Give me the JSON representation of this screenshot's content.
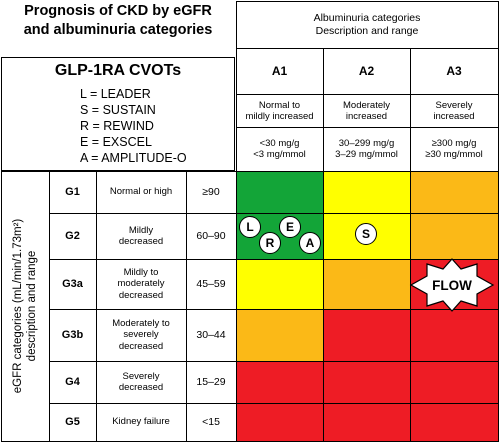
{
  "title": {
    "line1": "Prognosis of CKD by eGFR",
    "line2": "and albuminuria categories"
  },
  "cvot": {
    "title": "GLP-1RA CVOTs",
    "items": [
      "L = LEADER",
      "S = SUSTAIN",
      "R = REWIND",
      "E = EXSCEL",
      "A = AMPLITUDE-O"
    ]
  },
  "albuminuria": {
    "header_line1": "Albuminuria categories",
    "header_line2": "Description and range",
    "columns": [
      {
        "label": "A1",
        "desc": [
          "Normal to",
          "mildly increased"
        ],
        "range": [
          "<30 mg/g",
          "<3 mg/mmol"
        ]
      },
      {
        "label": "A2",
        "desc": [
          "Moderately",
          "increased"
        ],
        "range": [
          "30–299 mg/g",
          "3–29 mg/mmol"
        ]
      },
      {
        "label": "A3",
        "desc": [
          "Severely",
          "increased"
        ],
        "range": [
          "≥300 mg/g",
          "≥30 mg/mmol"
        ]
      }
    ]
  },
  "egfr": {
    "side_label_line1": "eGFR categories (mL/min/1.73m²)",
    "side_label_line2": "description and range",
    "rows": [
      {
        "label": "G1",
        "desc": [
          "Normal or high"
        ],
        "range": "≥90"
      },
      {
        "label": "G2",
        "desc": [
          "Mildly",
          "decreased"
        ],
        "range": "60–90"
      },
      {
        "label": "G3a",
        "desc": [
          "Mildly to",
          "moderately",
          "decreased"
        ],
        "range": "45–59"
      },
      {
        "label": "G3b",
        "desc": [
          "Moderately to",
          "severely",
          "decreased"
        ],
        "range": "30–44"
      },
      {
        "label": "G4",
        "desc": [
          "Severely",
          "decreased"
        ],
        "range": "15–29"
      },
      {
        "label": "G5",
        "desc": [
          "Kidney failure"
        ],
        "range": "<15"
      }
    ]
  },
  "colors": {
    "green": "#13a538",
    "yellow": "#ffff00",
    "orange": "#fbb917",
    "red": "#ee1c25"
  },
  "risk_grid": [
    [
      "green",
      "yellow",
      "orange"
    ],
    [
      "green",
      "yellow",
      "orange"
    ],
    [
      "yellow",
      "orange",
      "red"
    ],
    [
      "orange",
      "red",
      "red"
    ],
    [
      "red",
      "red",
      "red"
    ],
    [
      "red",
      "red",
      "red"
    ]
  ],
  "trial_markers": {
    "a1_g2": [
      "L",
      "R",
      "E",
      "A"
    ],
    "a2_g2": [
      "S"
    ]
  },
  "flow_label": "FLOW"
}
